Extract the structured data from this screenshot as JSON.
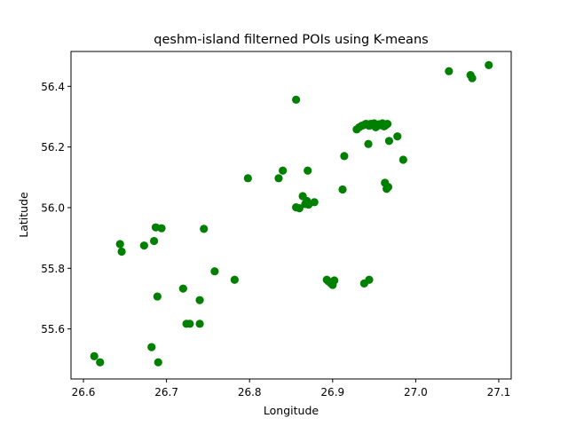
{
  "chart_data": {
    "type": "scatter",
    "title": "qeshm-island filterned POIs using K-means",
    "xlabel": "Longitude",
    "ylabel": "Latitude",
    "xlim": [
      26.585,
      27.115
    ],
    "ylim": [
      55.435,
      56.515
    ],
    "xticks": [
      26.6,
      26.7,
      26.8,
      26.9,
      27.0,
      27.1
    ],
    "xtick_labels": [
      "26.6",
      "26.7",
      "26.8",
      "26.9",
      "27.0",
      "27.1"
    ],
    "yticks": [
      55.6,
      55.8,
      56.0,
      56.2,
      56.4
    ],
    "ytick_labels": [
      "55.6",
      "55.8",
      "56.0",
      "56.2",
      "56.4"
    ],
    "grid": false,
    "marker_color": "#008000",
    "series": [
      {
        "name": "POIs",
        "points": [
          [
            26.613,
            55.51
          ],
          [
            26.62,
            55.49
          ],
          [
            26.682,
            55.54
          ],
          [
            26.69,
            55.49
          ],
          [
            26.644,
            55.88
          ],
          [
            26.646,
            55.855
          ],
          [
            26.673,
            55.875
          ],
          [
            26.685,
            55.89
          ],
          [
            26.687,
            55.935
          ],
          [
            26.694,
            55.932
          ],
          [
            26.689,
            55.707
          ],
          [
            26.72,
            55.733
          ],
          [
            26.724,
            55.617
          ],
          [
            26.728,
            55.617
          ],
          [
            26.74,
            55.617
          ],
          [
            26.74,
            55.695
          ],
          [
            26.745,
            55.93
          ],
          [
            26.758,
            55.79
          ],
          [
            26.782,
            55.762
          ],
          [
            26.798,
            56.097
          ],
          [
            26.835,
            56.097
          ],
          [
            26.84,
            56.122
          ],
          [
            26.856,
            56.356
          ],
          [
            26.856,
            56.001
          ],
          [
            26.86,
            55.998
          ],
          [
            26.864,
            56.038
          ],
          [
            26.867,
            56.012
          ],
          [
            26.869,
            56.022
          ],
          [
            26.87,
            56.122
          ],
          [
            26.871,
            56.01
          ],
          [
            26.878,
            56.018
          ],
          [
            26.893,
            55.762
          ],
          [
            26.895,
            55.757
          ],
          [
            26.898,
            55.75
          ],
          [
            26.9,
            55.745
          ],
          [
            26.902,
            55.76
          ],
          [
            26.912,
            56.06
          ],
          [
            26.914,
            56.17
          ],
          [
            26.929,
            56.258
          ],
          [
            26.932,
            56.265
          ],
          [
            26.935,
            56.27
          ],
          [
            26.938,
            56.273
          ],
          [
            26.94,
            56.276
          ],
          [
            26.942,
            56.275
          ],
          [
            26.944,
            56.27
          ],
          [
            26.946,
            56.276
          ],
          [
            26.948,
            56.272
          ],
          [
            26.95,
            56.278
          ],
          [
            26.952,
            56.265
          ],
          [
            26.954,
            56.27
          ],
          [
            26.956,
            56.275
          ],
          [
            26.958,
            56.272
          ],
          [
            26.96,
            56.278
          ],
          [
            26.962,
            56.268
          ],
          [
            26.964,
            56.272
          ],
          [
            26.966,
            56.276
          ],
          [
            26.938,
            55.75
          ],
          [
            26.944,
            55.762
          ],
          [
            26.943,
            56.21
          ],
          [
            26.963,
            56.082
          ],
          [
            26.965,
            56.062
          ],
          [
            26.967,
            56.068
          ],
          [
            26.968,
            56.22
          ],
          [
            26.978,
            56.235
          ],
          [
            26.985,
            56.158
          ],
          [
            27.04,
            56.45
          ],
          [
            27.066,
            56.437
          ],
          [
            27.068,
            56.427
          ],
          [
            27.088,
            56.47
          ]
        ]
      }
    ]
  }
}
